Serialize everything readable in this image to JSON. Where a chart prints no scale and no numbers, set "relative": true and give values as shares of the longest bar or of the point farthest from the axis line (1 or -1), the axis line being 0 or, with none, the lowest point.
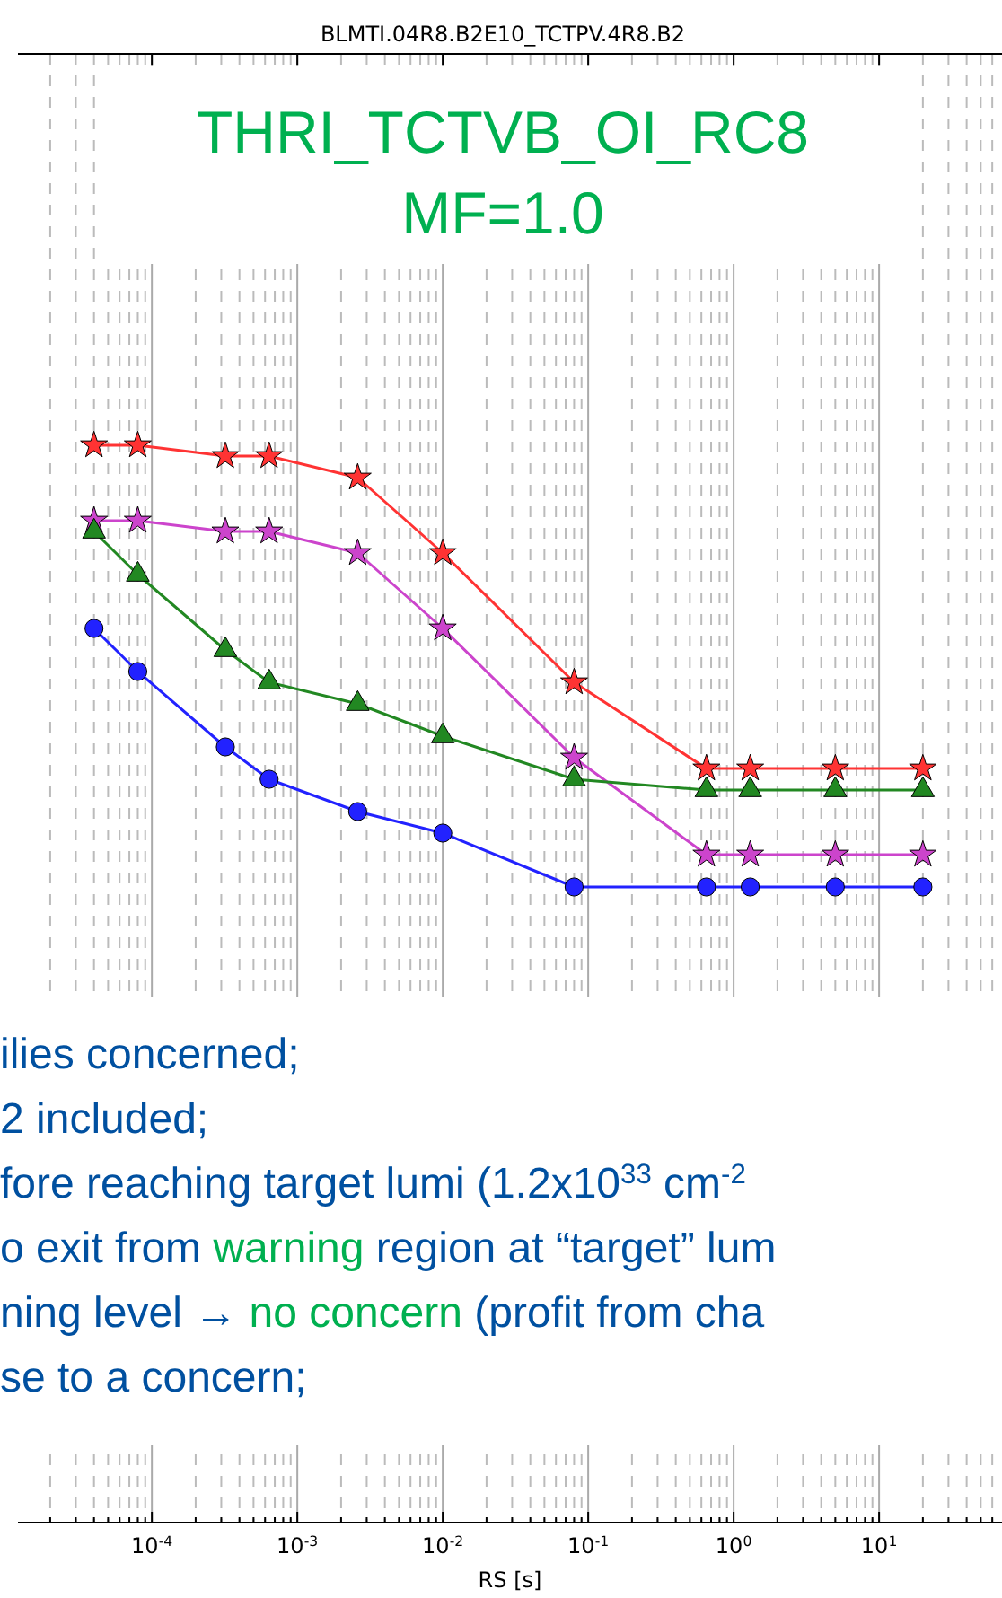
{
  "chart_data": {
    "type": "line",
    "title": "BLMTI.04R8.B2E10_TCTPV.4R8.B2",
    "xlabel": "RS [s]",
    "log": "x",
    "relative": true,
    "grid": "x",
    "xlim": [
      1.2e-05,
      70
    ],
    "xticks": [
      {
        "value": 0.0001,
        "label": "10$^{-4}$"
      },
      {
        "value": 0.001,
        "label": "10$^{-3}$"
      },
      {
        "value": 0.01,
        "label": "10$^{-2}$"
      },
      {
        "value": 0.1,
        "label": "10$^{-1}$"
      },
      {
        "value": 1,
        "label": "10$^{0}$"
      },
      {
        "value": 10,
        "label": "10$^{1}$"
      }
    ],
    "x": [
      4e-05,
      8e-05,
      0.00032,
      0.00064,
      0.0026,
      0.01,
      0.08,
      0.65,
      1.3,
      5,
      20
    ],
    "series": [
      {
        "color": "#ff3333",
        "marker": "star",
        "values": [
          1.0,
          1.0,
          0.99,
          0.99,
          0.97,
          0.9,
          0.78,
          0.7,
          0.7,
          0.7,
          0.7
        ]
      },
      {
        "color": "#cc44cc",
        "marker": "star",
        "values": [
          0.93,
          0.93,
          0.92,
          0.92,
          0.9,
          0.83,
          0.71,
          0.62,
          0.62,
          0.62,
          0.62
        ]
      },
      {
        "color": "#228822",
        "marker": "triangle",
        "values": [
          0.92,
          0.88,
          0.81,
          0.78,
          0.76,
          0.73,
          0.69,
          0.68,
          0.68,
          0.68,
          0.68
        ]
      },
      {
        "color": "#2222ff",
        "marker": "circle",
        "values": [
          0.83,
          0.79,
          0.72,
          0.69,
          0.66,
          0.64,
          0.59,
          0.59,
          0.59,
          0.59,
          0.59
        ]
      }
    ],
    "annotations": [
      "THRI_TCTVB_OI_RC8",
      "MF=1.0",
      "ilies concerned;",
      "2 included;",
      "fore reaching target lumi (1.2x10$^{33}$ cm$^{-2}$",
      "o exit from ",
      "warning",
      " region at “target” lum",
      "ning level → ",
      "no concern",
      " (profit from cha",
      "se to a concern;"
    ]
  }
}
